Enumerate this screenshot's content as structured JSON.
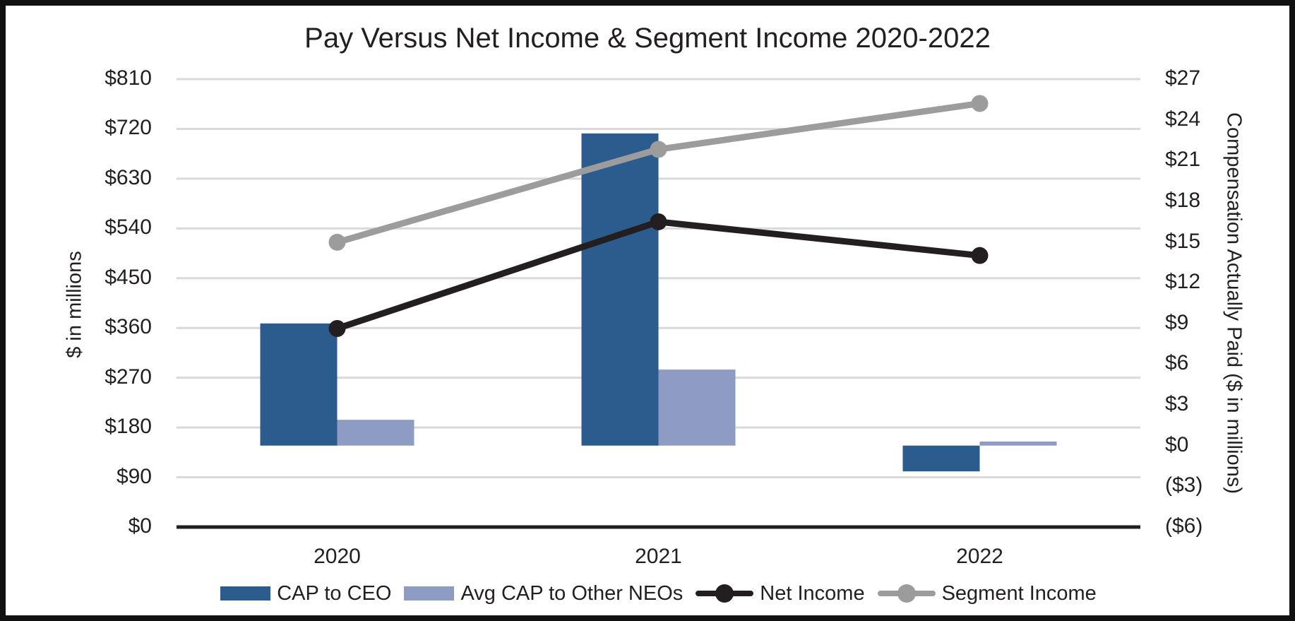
{
  "window": {
    "background_color": "#FFFFFF",
    "border_color": "#111111",
    "text_color": "#231F20"
  },
  "chart_data": {
    "type": "combo-bar-line",
    "title": "Pay Versus Net Income & Segment Income 2020-2022",
    "categories": [
      "2020",
      "2021",
      "2022"
    ],
    "bar_series": [
      {
        "name": "CAP to CEO",
        "axis": "right",
        "color": "#2B5C8D",
        "values": [
          9.0,
          23.0,
          -1.9
        ]
      },
      {
        "name": "Avg CAP to Other NEOs",
        "axis": "right",
        "color": "#8E9CC4",
        "values": [
          1.9,
          5.6,
          0.3
        ]
      }
    ],
    "line_series": [
      {
        "name": "Net Income",
        "axis": "left",
        "color": "#231F20",
        "values": [
          359,
          552,
          491
        ]
      },
      {
        "name": "Segment Income",
        "axis": "left",
        "color": "#9C9C9C",
        "values": [
          515,
          683,
          766
        ]
      }
    ],
    "left_axis": {
      "title": "$ in millions",
      "min": 0,
      "max": 810,
      "tick_step": 90,
      "tick_labels": [
        "$0",
        "$90",
        "$180",
        "$270",
        "$360",
        "$450",
        "$540",
        "$630",
        "$720",
        "$810"
      ]
    },
    "right_axis": {
      "title": "Compensation Actually Paid ($ in millions)",
      "min": -6,
      "max": 27,
      "tick_step": 3,
      "tick_labels": [
        "($6)",
        "($3)",
        "$0",
        "$3",
        "$6",
        "$9",
        "$12",
        "$15",
        "$18",
        "$21",
        "$24",
        "$27"
      ]
    },
    "grid": {
      "show": true,
      "color": "#D9D9D9"
    },
    "axis_line_color": "#231F20",
    "legend_position": "bottom"
  }
}
